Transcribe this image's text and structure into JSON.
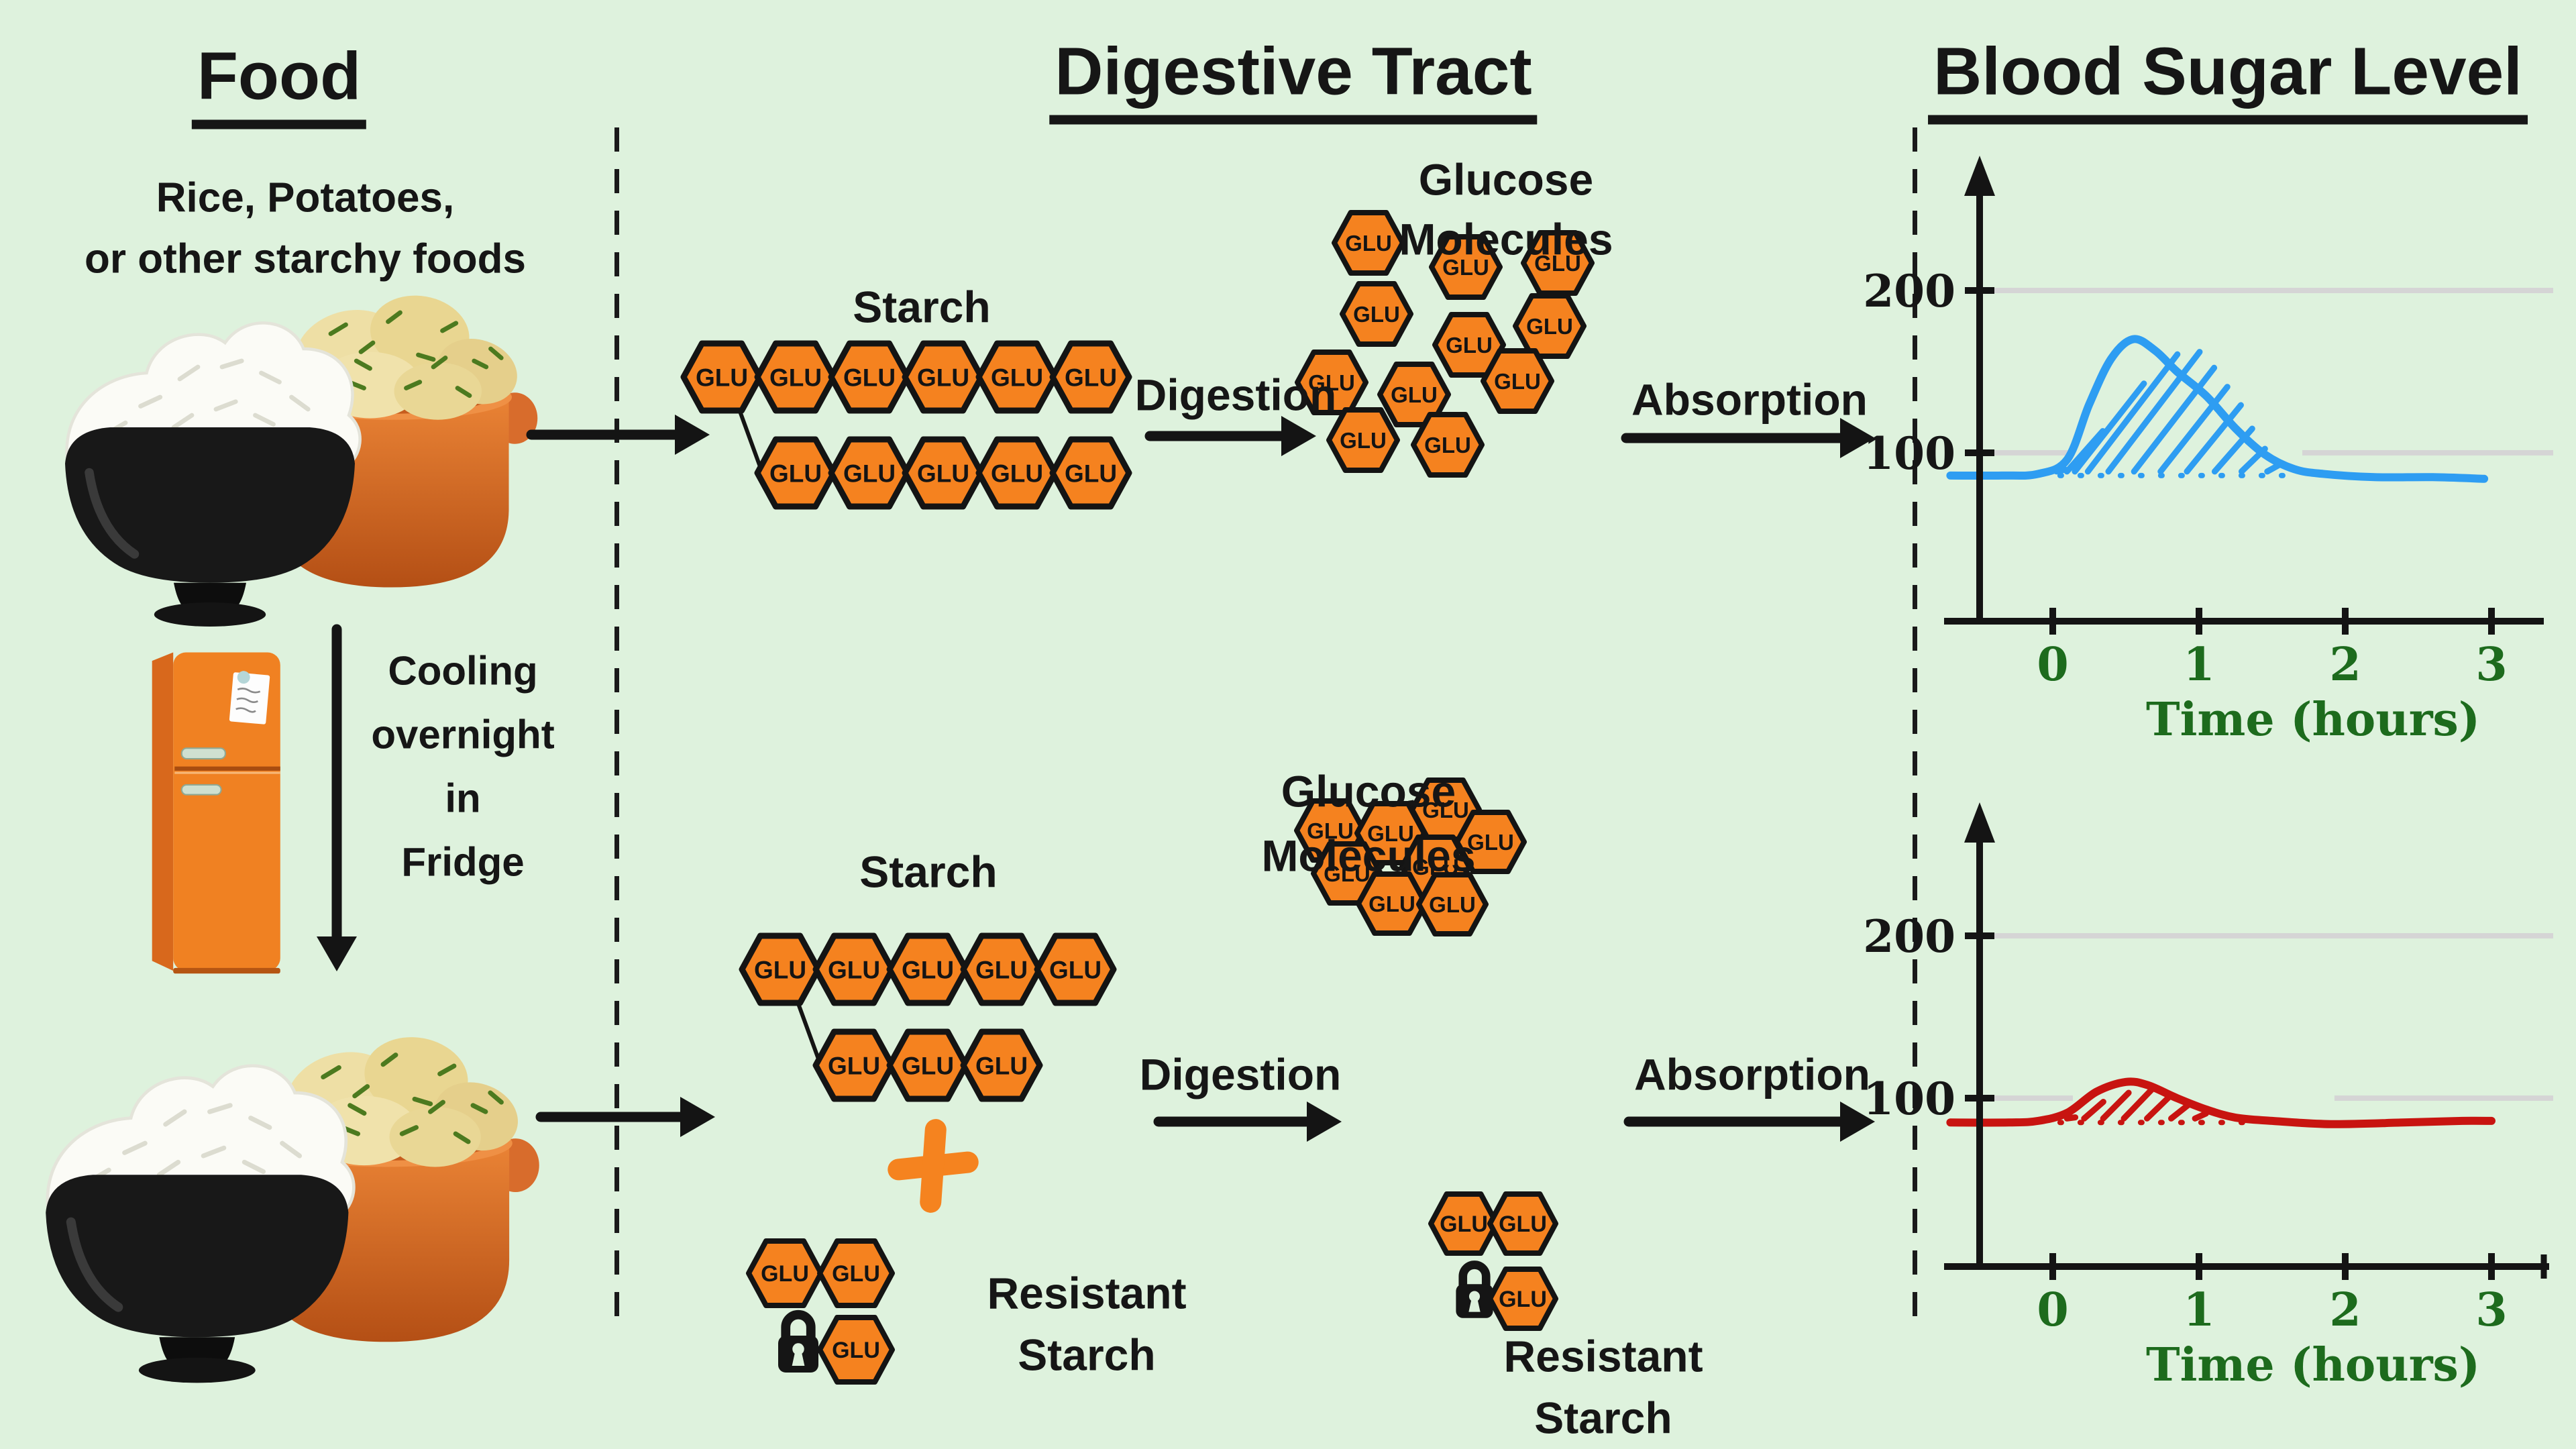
{
  "colors": {
    "background": "#def2dd",
    "hex_fill": "#f5821f",
    "hex_stroke": "#141414",
    "text": "#161616",
    "axis": "#141414",
    "grid": "#d5d5d5",
    "green_text": "#1d6b1d",
    "blue_curve": "#2e9df2",
    "red_curve": "#c81410",
    "fridge_orange": "#f08122",
    "plus_orange": "#f5831f"
  },
  "headers": {
    "food": "Food",
    "digestive_tract": "Digestive Tract",
    "blood_sugar": "Blood Sugar Level"
  },
  "food_column": {
    "subtitle_lines": [
      "Rice, Potatoes,",
      "or other starchy foods"
    ],
    "cooling_caption_lines": [
      "Cooling",
      "overnight",
      "in",
      "Fridge"
    ],
    "food_image_alt": "bowl of rice and pot of boiled potatoes",
    "fridge_alt": "orange refrigerator"
  },
  "glu_label": "GLU",
  "top_row": {
    "starch_label": "Starch",
    "digestion_label": "Digestion",
    "absorption_label": "Absorption",
    "glucose_title_lines": [
      "Glucose",
      "Molecules"
    ],
    "starch_chain": {
      "row1_count": 6,
      "row2_count": 5
    },
    "glucose_molecule_count": 11
  },
  "bottom_row": {
    "starch_label": "Starch",
    "plus_sign": "+",
    "resistant_starch_label_lines": [
      "Resistant",
      "Starch"
    ],
    "digestion_label": "Digestion",
    "absorption_label": "Absorption",
    "glucose_title_lines": [
      "Glucose",
      "Molecules"
    ],
    "resistant_starch_right_label_lines": [
      "Resistant",
      "Starch"
    ],
    "starch_chain": {
      "row1_count": 5,
      "row2_count": 3
    },
    "glucose_molecule_count": 8,
    "resistant_cluster_left_count": 3,
    "resistant_cluster_right_count": 3
  },
  "chart_data": [
    {
      "type": "line",
      "name": "blood-sugar-regular-starch",
      "description": "Large blood sugar spike after eating freshly cooked starchy food",
      "color": "#2e9df2",
      "x_tick_labels": [
        "0",
        "1",
        "2",
        "3"
      ],
      "y_tick_labels": [
        "100",
        "200"
      ],
      "xlabel": "Time (hours)",
      "x_range": [
        -0.7,
        3.0
      ],
      "baseline": 86,
      "peak_value": 170,
      "peak_time": 0.55,
      "points": [
        [
          -0.7,
          86
        ],
        [
          -0.35,
          86
        ],
        [
          -0.1,
          87
        ],
        [
          0.1,
          96
        ],
        [
          0.25,
          130
        ],
        [
          0.4,
          158
        ],
        [
          0.55,
          170
        ],
        [
          0.7,
          163
        ],
        [
          0.85,
          150
        ],
        [
          1.05,
          135
        ],
        [
          1.25,
          115
        ],
        [
          1.45,
          99
        ],
        [
          1.65,
          90
        ],
        [
          1.85,
          87
        ],
        [
          2.2,
          85
        ],
        [
          2.6,
          85
        ],
        [
          2.95,
          84
        ]
      ],
      "dotted_region": [
        0.05,
        1.62
      ],
      "hatch_region": [
        0.05,
        1.5
      ],
      "hatch_count": 11,
      "grid_values": [
        100,
        200
      ]
    },
    {
      "type": "line",
      "name": "blood-sugar-resistant-starch",
      "description": "Small blood sugar rise after eating cooled starchy food containing resistant starch",
      "color": "#c81410",
      "x_tick_labels": [
        "0",
        "1",
        "2",
        "3"
      ],
      "y_tick_labels": [
        "100",
        "200"
      ],
      "xlabel": "Time (hours)",
      "x_range": [
        -0.7,
        3.0
      ],
      "baseline": 85,
      "peak_value": 110,
      "peak_time": 0.5,
      "points": [
        [
          -0.7,
          85
        ],
        [
          -0.3,
          85
        ],
        [
          -0.1,
          86
        ],
        [
          0.1,
          91
        ],
        [
          0.3,
          104
        ],
        [
          0.5,
          110
        ],
        [
          0.65,
          108
        ],
        [
          0.85,
          100
        ],
        [
          1.05,
          93
        ],
        [
          1.25,
          88
        ],
        [
          1.5,
          86
        ],
        [
          1.9,
          84
        ],
        [
          2.4,
          85
        ],
        [
          2.8,
          86
        ],
        [
          3.0,
          86
        ]
      ],
      "dotted_region": [
        0.05,
        1.3
      ],
      "hatch_region": [
        0.12,
        1.15
      ],
      "hatch_count": 8,
      "grid_values": [
        100,
        200
      ]
    }
  ]
}
